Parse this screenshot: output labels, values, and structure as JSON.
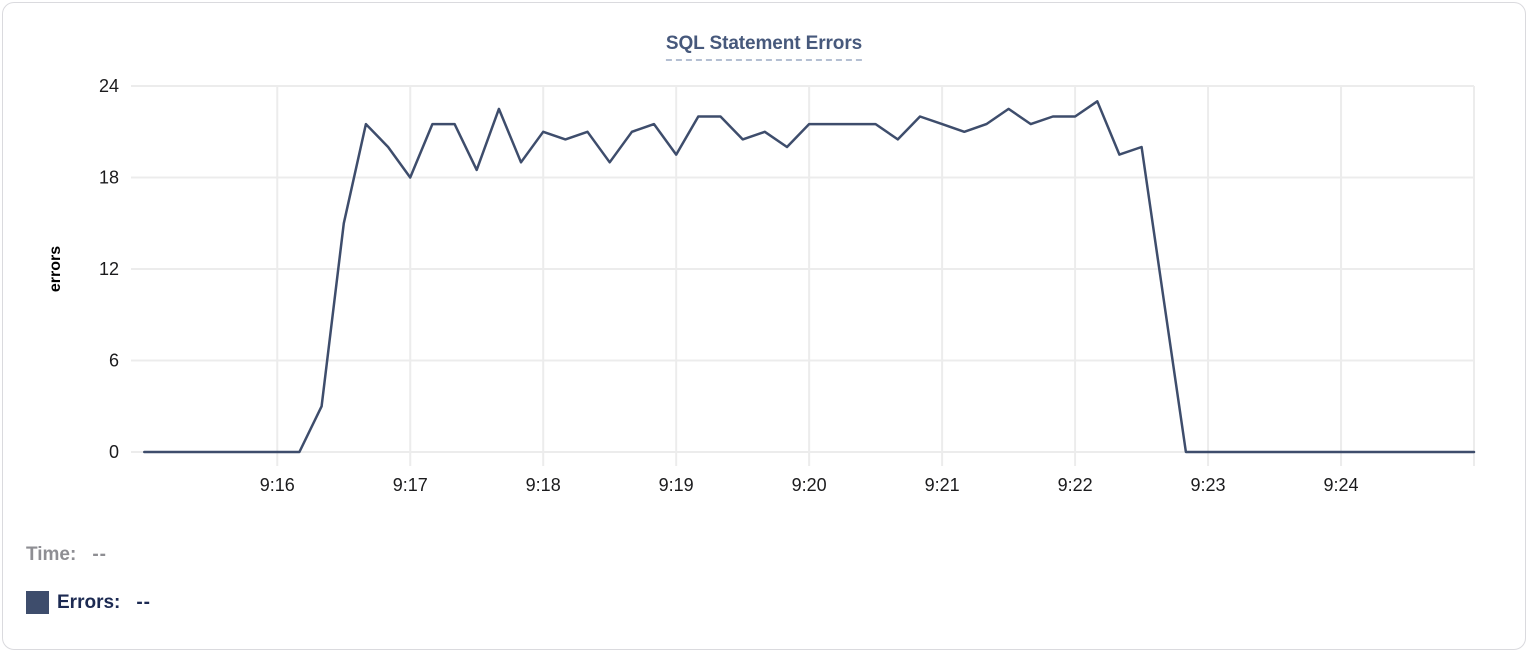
{
  "card": {
    "title": "SQL Statement Errors"
  },
  "chart_data": {
    "type": "line",
    "title": "SQL Statement Errors",
    "xlabel": "",
    "ylabel": "errors",
    "series_name": "Errors",
    "line_color": "#3e4d6c",
    "grid": true,
    "legend_position": "none",
    "ylim": [
      0,
      24
    ],
    "y_ticks": [
      0,
      6,
      12,
      18,
      24
    ],
    "x_min": "9:14:54",
    "x_max": "9:25:00",
    "x_gridlines": [
      "9:16:00",
      "9:17:00",
      "9:18:00",
      "9:19:00",
      "9:20:00",
      "9:21:00",
      "9:22:00",
      "9:23:00",
      "9:24:00",
      "9:25:00"
    ],
    "x_tick_labels": [
      {
        "t": "9:16:00",
        "label": "9:16"
      },
      {
        "t": "9:17:00",
        "label": "9:17"
      },
      {
        "t": "9:18:00",
        "label": "9:18"
      },
      {
        "t": "9:19:00",
        "label": "9:19"
      },
      {
        "t": "9:20:00",
        "label": "9:20"
      },
      {
        "t": "9:21:00",
        "label": "9:21"
      },
      {
        "t": "9:22:00",
        "label": "9:22"
      },
      {
        "t": "9:23:00",
        "label": "9:23"
      },
      {
        "t": "9:24:00",
        "label": "9:24"
      }
    ],
    "points": [
      [
        "9:15:00",
        0
      ],
      [
        "9:15:10",
        0
      ],
      [
        "9:15:20",
        0
      ],
      [
        "9:15:30",
        0
      ],
      [
        "9:15:40",
        0
      ],
      [
        "9:15:50",
        0
      ],
      [
        "9:16:00",
        0
      ],
      [
        "9:16:10",
        0
      ],
      [
        "9:16:20",
        3
      ],
      [
        "9:16:30",
        15
      ],
      [
        "9:16:40",
        21.5
      ],
      [
        "9:16:50",
        20
      ],
      [
        "9:17:00",
        18
      ],
      [
        "9:17:10",
        21.5
      ],
      [
        "9:17:20",
        21.5
      ],
      [
        "9:17:30",
        18.5
      ],
      [
        "9:17:40",
        22.5
      ],
      [
        "9:17:50",
        19
      ],
      [
        "9:18:00",
        21
      ],
      [
        "9:18:10",
        20.5
      ],
      [
        "9:18:20",
        21
      ],
      [
        "9:18:30",
        19
      ],
      [
        "9:18:40",
        21
      ],
      [
        "9:18:50",
        21.5
      ],
      [
        "9:19:00",
        19.5
      ],
      [
        "9:19:10",
        22
      ],
      [
        "9:19:20",
        22
      ],
      [
        "9:19:30",
        20.5
      ],
      [
        "9:19:40",
        21
      ],
      [
        "9:19:50",
        20
      ],
      [
        "9:20:00",
        21.5
      ],
      [
        "9:20:10",
        21.5
      ],
      [
        "9:20:20",
        21.5
      ],
      [
        "9:20:30",
        21.5
      ],
      [
        "9:20:40",
        20.5
      ],
      [
        "9:20:50",
        22
      ],
      [
        "9:21:00",
        21.5
      ],
      [
        "9:21:10",
        21
      ],
      [
        "9:21:20",
        21.5
      ],
      [
        "9:21:30",
        22.5
      ],
      [
        "9:21:40",
        21.5
      ],
      [
        "9:21:50",
        22
      ],
      [
        "9:22:00",
        22
      ],
      [
        "9:22:10",
        23
      ],
      [
        "9:22:20",
        19.5
      ],
      [
        "9:22:30",
        20
      ],
      [
        "9:22:40",
        10
      ],
      [
        "9:22:50",
        0
      ],
      [
        "9:23:00",
        0
      ],
      [
        "9:23:10",
        0
      ],
      [
        "9:23:20",
        0
      ],
      [
        "9:23:30",
        0
      ],
      [
        "9:23:40",
        0
      ],
      [
        "9:23:50",
        0
      ],
      [
        "9:24:00",
        0
      ],
      [
        "9:24:10",
        0
      ],
      [
        "9:24:20",
        0
      ],
      [
        "9:24:30",
        0
      ],
      [
        "9:24:40",
        0
      ],
      [
        "9:24:50",
        0
      ],
      [
        "9:25:00",
        0
      ]
    ],
    "colors": {
      "gridline": "#ececec",
      "tick_text": "#1b1b1d",
      "axis_label_text": "#000000",
      "title_text": "#47597c",
      "title_underline": "#b4bfd2"
    }
  },
  "footer": {
    "time_label": "Time:",
    "time_value": "--",
    "errors_label": "Errors:",
    "errors_value": "--",
    "swatch_color": "#3e4d6c"
  }
}
